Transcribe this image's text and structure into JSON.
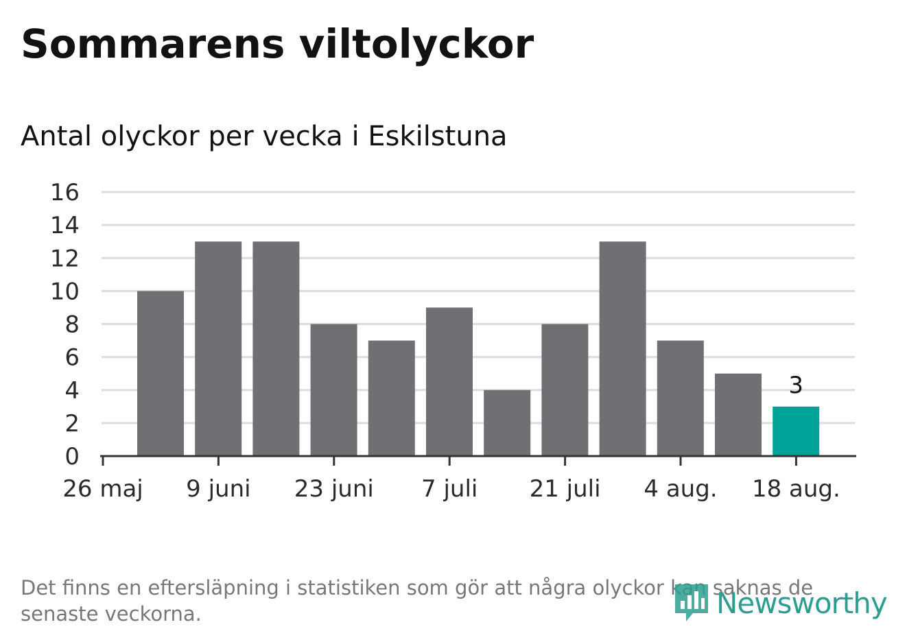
{
  "title": "Sommarens viltolyckor",
  "subtitle": "Antal olyckor per vecka i Eskilstuna",
  "footnote": "Det finns en eftersläpning i statistiken som gör att några olyckor kan saknas de senaste veckorna.",
  "logo": {
    "text": "Newsworthy",
    "icon": "newsworthy-bar-chart-icon",
    "color": "#2b9e8f"
  },
  "chart_data": {
    "type": "bar",
    "title": "",
    "xlabel": "",
    "ylabel": "",
    "ylim": [
      0,
      16
    ],
    "yticks": [
      0,
      2,
      4,
      6,
      8,
      10,
      12,
      14,
      16
    ],
    "grid": true,
    "legend": "none",
    "x_tick_labels": [
      "26 maj",
      "9 juni",
      "23 juni",
      "7 juli",
      "21 juli",
      "4 aug.",
      "18 aug."
    ],
    "values": [
      10,
      13,
      13,
      8,
      7,
      9,
      4,
      8,
      13,
      7,
      5,
      3
    ],
    "highlight_index": 11,
    "highlight_label": "3",
    "colors": {
      "bar": "#706f74",
      "highlight": "#00a398",
      "grid": "#dcdcdc",
      "axis": "#333333"
    }
  }
}
